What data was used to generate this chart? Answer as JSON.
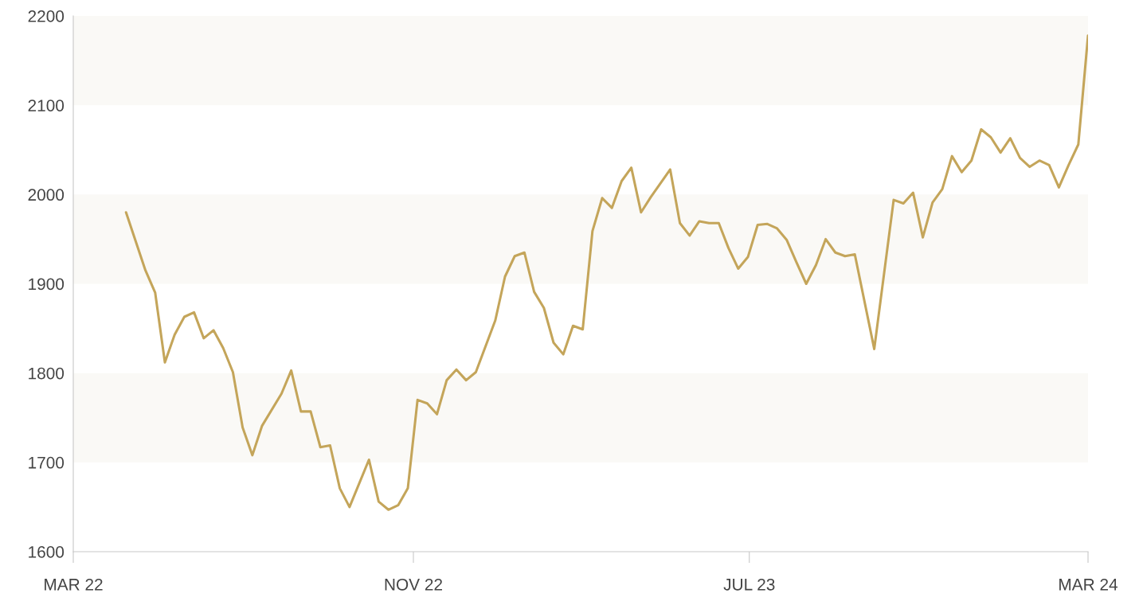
{
  "chart_data": {
    "type": "line",
    "x": [
      "2022-04-08",
      "2022-04-22",
      "2022-04-29",
      "2022-05-06",
      "2022-05-13",
      "2022-05-20",
      "2022-05-27",
      "2022-06-03",
      "2022-06-10",
      "2022-06-17",
      "2022-06-24",
      "2022-07-01",
      "2022-07-08",
      "2022-07-15",
      "2022-07-29",
      "2022-08-05",
      "2022-08-12",
      "2022-08-19",
      "2022-08-26",
      "2022-09-02",
      "2022-09-09",
      "2022-09-16",
      "2022-09-30",
      "2022-10-07",
      "2022-10-14",
      "2022-10-21",
      "2022-10-28",
      "2022-11-04",
      "2022-11-11",
      "2022-11-18",
      "2022-11-25",
      "2022-12-02",
      "2022-12-09",
      "2022-12-16",
      "2022-12-30",
      "2023-01-06",
      "2023-01-13",
      "2023-01-20",
      "2023-01-27",
      "2023-02-03",
      "2023-02-10",
      "2023-02-17",
      "2023-02-24",
      "2023-03-03",
      "2023-03-10",
      "2023-03-17",
      "2023-03-24",
      "2023-03-31",
      "2023-04-07",
      "2023-04-14",
      "2023-04-21",
      "2023-05-05",
      "2023-05-12",
      "2023-05-19",
      "2023-05-26",
      "2023-06-02",
      "2023-06-09",
      "2023-06-16",
      "2023-06-23",
      "2023-06-30",
      "2023-07-07",
      "2023-07-14",
      "2023-07-21",
      "2023-07-28",
      "2023-08-04",
      "2023-08-11",
      "2023-08-18",
      "2023-08-25",
      "2023-09-01",
      "2023-09-08",
      "2023-09-15",
      "2023-09-29",
      "2023-10-13",
      "2023-10-20",
      "2023-10-27",
      "2023-11-03",
      "2023-11-10",
      "2023-11-17",
      "2023-11-24",
      "2023-12-01",
      "2023-12-08",
      "2023-12-15",
      "2023-12-22",
      "2023-12-29",
      "2024-01-05",
      "2024-01-12",
      "2024-01-19",
      "2024-01-26",
      "2024-02-02",
      "2024-02-09",
      "2024-02-16",
      "2024-02-23",
      "2024-03-01"
    ],
    "series": [
      {
        "color": "#c4a55a",
        "values": [
          1980,
          1915,
          1890,
          1812,
          1843,
          1863,
          1868,
          1839,
          1848,
          1828,
          1801,
          1739,
          1708,
          1741,
          1777,
          1803,
          1757,
          1757,
          1717,
          1719,
          1671,
          1650,
          1703,
          1656,
          1647,
          1652,
          1671,
          1770,
          1766,
          1754,
          1792,
          1804,
          1792,
          1801,
          1859,
          1908,
          1931,
          1935,
          1891,
          1873,
          1834,
          1821,
          1853,
          1849,
          1959,
          1996,
          1985,
          2015,
          2030,
          1980,
          1997,
          2028,
          1968,
          1954,
          1970,
          1968,
          1968,
          1940,
          1917,
          1930,
          1966,
          1967,
          1962,
          1949,
          1924,
          1900,
          1921,
          1950,
          1935,
          1931,
          1933,
          1827,
          1994,
          1990,
          2002,
          1952,
          1991,
          2006,
          2043,
          2025,
          2038,
          2073,
          2064,
          2047,
          2063,
          2041,
          2031,
          2038,
          2033,
          2008,
          2033,
          2056,
          2178
        ]
      }
    ],
    "xlim": [
      "2022-03-01",
      "2024-03-01"
    ],
    "xticks": [
      {
        "value": "2022-03-01",
        "label": "MAR 22"
      },
      {
        "value": "2022-11-01",
        "label": "NOV 22"
      },
      {
        "value": "2023-07-01",
        "label": "JUL 23"
      },
      {
        "value": "2024-03-01",
        "label": "MAR 24"
      }
    ],
    "ylim": [
      1600,
      2200
    ],
    "yticks": [
      1600,
      1700,
      1800,
      1900,
      2000,
      2100,
      2200
    ],
    "bands": [
      {
        "axis": "y",
        "from": 1700,
        "to": 1800,
        "color": "#faf9f6"
      },
      {
        "axis": "y",
        "from": 1900,
        "to": 2000,
        "color": "#faf9f6"
      },
      {
        "axis": "y",
        "from": 2100,
        "to": 2200,
        "color": "#faf9f6"
      }
    ],
    "grid": false,
    "legend": false,
    "marker": "none",
    "line_style": "solid"
  }
}
